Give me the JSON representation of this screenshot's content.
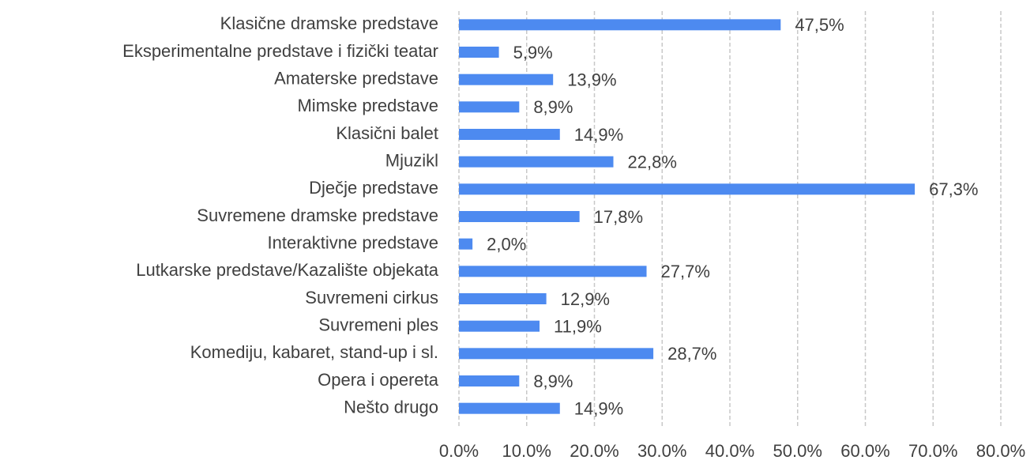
{
  "chart_data": {
    "type": "hbar",
    "categories": [
      "Klasične dramske predstave",
      "Eksperimentalne predstave i fizički teatar",
      "Amaterske predstave",
      "Mimske predstave",
      "Klasični balet",
      "Mjuzikl",
      "Dječje predstave",
      "Suvremene dramske predstave",
      "Interaktivne predstave",
      "Lutkarske predstave/Kazalište objekata",
      "Suvremeni cirkus",
      "Suvremeni ples",
      "Komediju, kabaret, stand-up i sl.",
      "Opera i opereta",
      "Nešto drugo"
    ],
    "values": [
      47.5,
      5.9,
      13.9,
      8.9,
      14.9,
      22.8,
      67.3,
      17.8,
      2.0,
      27.7,
      12.9,
      11.9,
      28.7,
      8.9,
      14.9
    ],
    "value_labels": [
      "47,5%",
      "5,9%",
      "13,9%",
      "8,9%",
      "14,9%",
      "22,8%",
      "67,3%",
      "17,8%",
      "2,0%",
      "27,7%",
      "12,9%",
      "11,9%",
      "28,7%",
      "8,9%",
      "14,9%"
    ],
    "color": "#4d8af0",
    "xlim": [
      0,
      80
    ],
    "xticks": [
      {
        "value": 0,
        "label": "0.0%"
      },
      {
        "value": 10,
        "label": "10.0%"
      },
      {
        "value": 20,
        "label": "20.0%"
      },
      {
        "value": 30,
        "label": "30.0%"
      },
      {
        "value": 40,
        "label": "40.0%"
      },
      {
        "value": 50,
        "label": "50.0%"
      },
      {
        "value": 60,
        "label": "60.0%"
      },
      {
        "value": 70,
        "label": "70.0%"
      },
      {
        "value": 80,
        "label": "80.0%"
      }
    ],
    "grid": true
  }
}
